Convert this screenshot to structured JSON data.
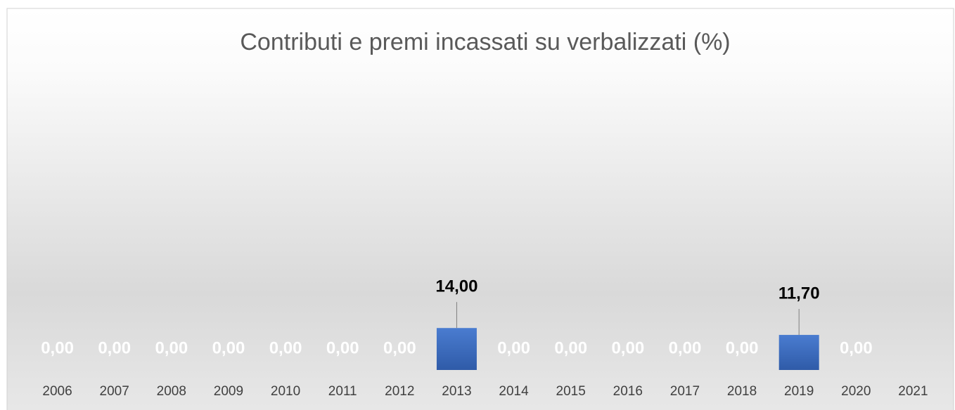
{
  "chart_data": {
    "type": "bar",
    "title": "Contributi e premi incassati su verbalizzati (%)",
    "categories": [
      "2006",
      "2007",
      "2008",
      "2009",
      "2010",
      "2011",
      "2012",
      "2013",
      "2014",
      "2015",
      "2016",
      "2017",
      "2018",
      "2019",
      "2020",
      "2021"
    ],
    "values": [
      0,
      0,
      0,
      0,
      0,
      0,
      0,
      14,
      0,
      0,
      0,
      0,
      0,
      11.7,
      0,
      null
    ],
    "value_labels": [
      "0,00",
      "0,00",
      "0,00",
      "0,00",
      "0,00",
      "0,00",
      "0,00",
      "14,00",
      "0,00",
      "0,00",
      "0,00",
      "0,00",
      "0,00",
      "11,70",
      "0,00",
      null
    ],
    "color": "#4472c4",
    "ylim": [
      0,
      100
    ]
  }
}
